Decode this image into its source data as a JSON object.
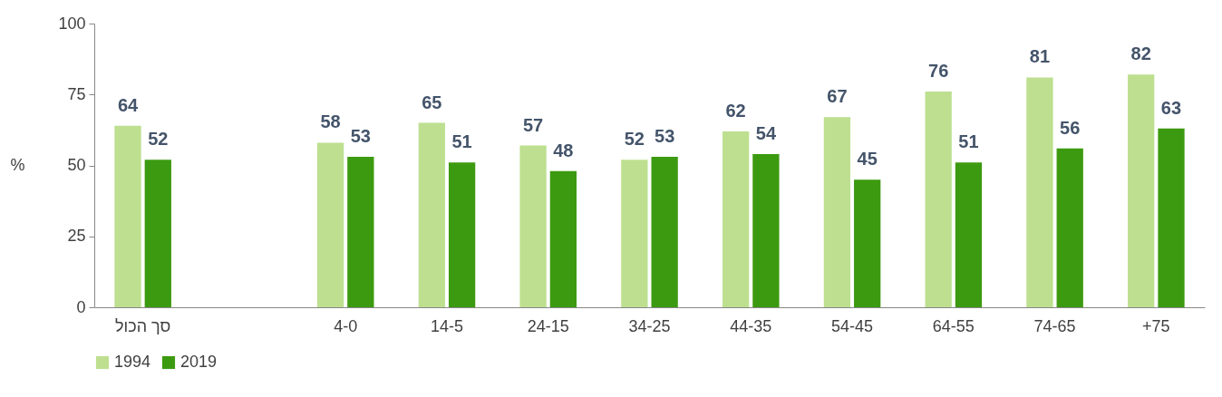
{
  "chart_data": {
    "type": "bar",
    "ylabel": "%",
    "categories": [
      "סך הכול",
      null,
      "4-0",
      "14-5",
      "24-15",
      "34-25",
      "44-35",
      "54-45",
      "64-55",
      "74-65",
      "+75"
    ],
    "series": [
      {
        "name": "1994",
        "color": "#bddf8f",
        "values": [
          64,
          null,
          58,
          65,
          57,
          52,
          62,
          67,
          76,
          81,
          82
        ]
      },
      {
        "name": "2019",
        "color": "#3c9a10",
        "values": [
          52,
          null,
          53,
          51,
          48,
          53,
          54,
          45,
          51,
          56,
          63
        ]
      }
    ],
    "ylim": [
      0,
      100
    ],
    "yticks": [
      0,
      25,
      50,
      75,
      100
    ],
    "data_labels": true,
    "legend": "bottom"
  }
}
